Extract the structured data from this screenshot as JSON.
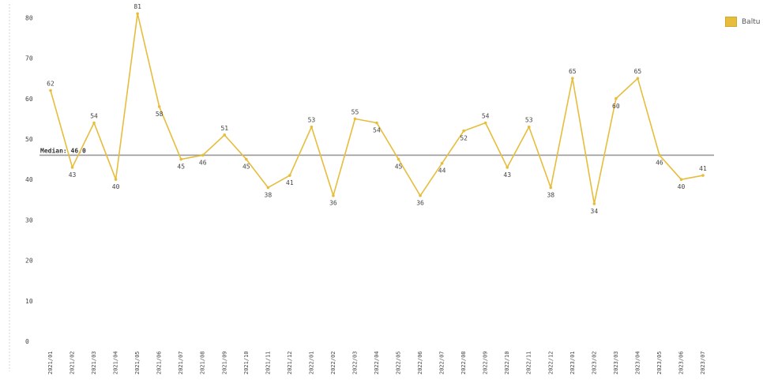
{
  "legend": {
    "series_label": "Baltu",
    "color": "#e6bd3c"
  },
  "chart_data": {
    "type": "line",
    "title": "",
    "xlabel": "",
    "ylabel": "",
    "ylim": [
      0,
      83
    ],
    "y_ticks": [
      0,
      10,
      20,
      30,
      40,
      50,
      60,
      70,
      80
    ],
    "grid": false,
    "legend_position": "top-right",
    "categories": [
      "2021/01",
      "2021/02",
      "2021/03",
      "2021/04",
      "2021/05",
      "2021/06",
      "2021/07",
      "2021/08",
      "2021/09",
      "2021/10",
      "2021/11",
      "2021/12",
      "2022/01",
      "2022/02",
      "2022/03",
      "2022/04",
      "2022/05",
      "2022/06",
      "2022/07",
      "2022/08",
      "2022/09",
      "2022/10",
      "2022/11",
      "2022/12",
      "2023/01",
      "2023/02",
      "2023/03",
      "2023/04",
      "2023/05",
      "2023/06",
      "2023/07"
    ],
    "series": [
      {
        "name": "Baltu",
        "color": "#e6bd3c",
        "values": [
          62,
          43,
          54,
          40,
          81,
          58,
          45,
          46,
          51,
          45,
          38,
          41,
          53,
          36,
          55,
          54,
          45,
          36,
          44,
          52,
          54,
          43,
          53,
          38,
          65,
          34,
          60,
          65,
          46,
          40,
          41
        ]
      }
    ],
    "median": {
      "label": "Median: 46.0",
      "value": 46.0,
      "color": "#999999"
    }
  }
}
